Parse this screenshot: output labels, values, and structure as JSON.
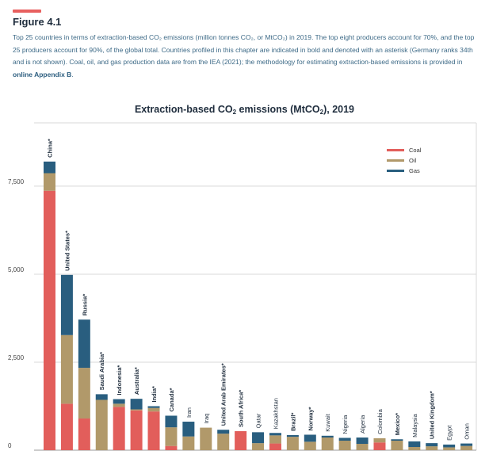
{
  "figure": {
    "label": "Figure 4.1",
    "accent_color": "#e8605f",
    "caption_parts": [
      {
        "text": "Top 25 countries in terms of extraction-based CO₂ emissions (million tonnes CO₂, or MtCO₂) in 2019. The top eight producers account for 70%, and the top 25 producers account for 90%, of the global total. Countries profiled in this chapter are indicated in bold and denoted with an asterisk (Germany ranks 34th and is not shown). Coal, oil, and gas production data are from the IEA (2021); the methodology for estimating extraction-based emissions is provided in ",
        "link": false
      },
      {
        "text": "online Appendix B",
        "link": true
      },
      {
        "text": ".",
        "link": false
      }
    ]
  },
  "chart_data": {
    "type": "bar",
    "stacked": true,
    "title_main": "Extraction-based CO",
    "title_sub": "2",
    "title_rest": " emissions (MtCO",
    "title_sub2": "2",
    "title_end": "), 2019",
    "ylim": [
      0,
      9300
    ],
    "yticks": [
      0,
      2500,
      5000,
      7500
    ],
    "ytick_labels": [
      "0",
      "2,500",
      "5,000",
      "7,500"
    ],
    "grid": true,
    "legend_position": "top-right",
    "categories": [
      "China*",
      "United States*",
      "Russia*",
      "Saudi Arabia*",
      "Indonesia*",
      "Australia*",
      "India*",
      "Canada*",
      "Iran",
      "Iraq",
      "United Arab Emirates*",
      "South Africa*",
      "Qatar",
      "Kazakhstan",
      "Brazil*",
      "Norway*",
      "Kuwait",
      "Nigeria",
      "Algeria",
      "Colombia",
      "Mexico*",
      "Malaysia",
      "United Kingdom*",
      "Egypt",
      "Oman"
    ],
    "bold": [
      true,
      true,
      true,
      true,
      true,
      true,
      true,
      true,
      false,
      false,
      true,
      true,
      false,
      false,
      true,
      true,
      false,
      false,
      false,
      false,
      true,
      false,
      true,
      false,
      false
    ],
    "series": [
      {
        "name": "Coal",
        "color": "#e25e5b",
        "values": [
          7370,
          1320,
          900,
          0,
          1230,
          1130,
          1100,
          120,
          0,
          0,
          0,
          540,
          0,
          190,
          0,
          0,
          0,
          0,
          0,
          220,
          0,
          0,
          0,
          0,
          0
        ]
      },
      {
        "name": "Oil",
        "color": "#b1996a",
        "values": [
          500,
          1950,
          1440,
          1430,
          90,
          30,
          100,
          530,
          390,
          640,
          470,
          0,
          200,
          230,
          380,
          240,
          360,
          270,
          180,
          120,
          270,
          90,
          110,
          80,
          120
        ]
      },
      {
        "name": "Gas",
        "color": "#295e7f",
        "values": [
          330,
          1710,
          1370,
          160,
          130,
          300,
          50,
          330,
          420,
          0,
          110,
          0,
          310,
          70,
          50,
          200,
          50,
          80,
          180,
          0,
          40,
          160,
          90,
          80,
          70
        ]
      }
    ]
  }
}
